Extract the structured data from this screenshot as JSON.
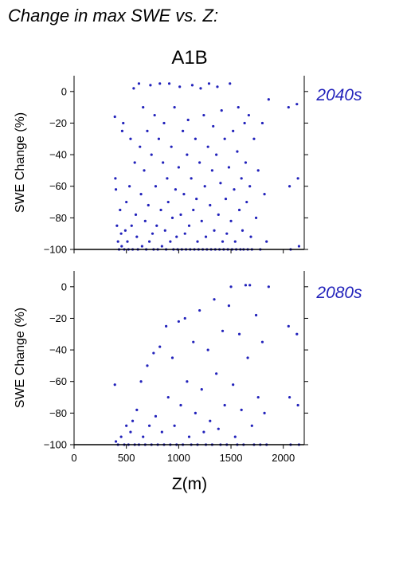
{
  "title": "Change in max SWE vs. Z:",
  "scenario": "A1B",
  "accent_color": "#2222bb",
  "chart_data": [
    {
      "type": "scatter",
      "period_label": "2040s",
      "xlabel": "",
      "ylabel": "SWE Change (%)",
      "xlim": [
        0,
        2200
      ],
      "ylim": [
        -100,
        10
      ],
      "x_ticks": [
        0,
        500,
        1000,
        1500,
        2000
      ],
      "y_ticks": [
        0,
        -20,
        -40,
        -60,
        -80,
        -100
      ],
      "x_tick_labels_visible": false,
      "grid": false,
      "series": [
        {
          "color": "#2222bb",
          "description_of_distribution": "dense vertical columns of points from about 380 m to 2150 m elevation; values span -100 to +6 percent, most dense between -100 and -40",
          "points": [
            [
              390,
              -16
            ],
            [
              395,
              -55
            ],
            [
              400,
              -62
            ],
            [
              410,
              -85
            ],
            [
              420,
              -95
            ],
            [
              430,
              -100
            ],
            [
              440,
              -75
            ],
            [
              450,
              -90
            ],
            [
              455,
              -98
            ],
            [
              460,
              -25
            ],
            [
              470,
              -20
            ],
            [
              480,
              -100
            ],
            [
              490,
              -88
            ],
            [
              500,
              -70
            ],
            [
              510,
              -95
            ],
            [
              520,
              -100
            ],
            [
              530,
              -60
            ],
            [
              540,
              -30
            ],
            [
              550,
              -85
            ],
            [
              560,
              -100
            ],
            [
              570,
              2
            ],
            [
              580,
              -45
            ],
            [
              590,
              -78
            ],
            [
              600,
              -92
            ],
            [
              610,
              -100
            ],
            [
              620,
              5
            ],
            [
              630,
              -35
            ],
            [
              640,
              -65
            ],
            [
              650,
              -98
            ],
            [
              660,
              -10
            ],
            [
              670,
              -50
            ],
            [
              680,
              -82
            ],
            [
              690,
              -100
            ],
            [
              700,
              -25
            ],
            [
              710,
              -72
            ],
            [
              720,
              -95
            ],
            [
              730,
              4
            ],
            [
              740,
              -40
            ],
            [
              750,
              -90
            ],
            [
              760,
              -100
            ],
            [
              770,
              -15
            ],
            [
              780,
              -60
            ],
            [
              790,
              -85
            ],
            [
              800,
              -100
            ],
            [
              810,
              -30
            ],
            [
              820,
              5
            ],
            [
              830,
              -75
            ],
            [
              840,
              -98
            ],
            [
              850,
              -45
            ],
            [
              860,
              -20
            ],
            [
              870,
              -88
            ],
            [
              880,
              -100
            ],
            [
              890,
              -55
            ],
            [
              900,
              -70
            ],
            [
              910,
              5
            ],
            [
              920,
              -95
            ],
            [
              930,
              -35
            ],
            [
              940,
              -80
            ],
            [
              950,
              -100
            ],
            [
              960,
              -10
            ],
            [
              970,
              -62
            ],
            [
              980,
              -92
            ],
            [
              990,
              -100
            ],
            [
              1000,
              -48
            ],
            [
              1010,
              3
            ],
            [
              1020,
              -78
            ],
            [
              1030,
              -100
            ],
            [
              1040,
              -25
            ],
            [
              1050,
              -65
            ],
            [
              1060,
              -90
            ],
            [
              1070,
              -100
            ],
            [
              1080,
              -40
            ],
            [
              1090,
              -18
            ],
            [
              1100,
              -85
            ],
            [
              1110,
              -100
            ],
            [
              1120,
              -55
            ],
            [
              1130,
              4
            ],
            [
              1140,
              -75
            ],
            [
              1150,
              -100
            ],
            [
              1160,
              -30
            ],
            [
              1170,
              -68
            ],
            [
              1180,
              -95
            ],
            [
              1190,
              -100
            ],
            [
              1200,
              -45
            ],
            [
              1210,
              2
            ],
            [
              1220,
              -82
            ],
            [
              1230,
              -100
            ],
            [
              1240,
              -15
            ],
            [
              1250,
              -60
            ],
            [
              1260,
              -92
            ],
            [
              1270,
              -100
            ],
            [
              1280,
              -35
            ],
            [
              1290,
              5
            ],
            [
              1300,
              -72
            ],
            [
              1310,
              -100
            ],
            [
              1320,
              -50
            ],
            [
              1330,
              -22
            ],
            [
              1340,
              -88
            ],
            [
              1350,
              -100
            ],
            [
              1360,
              -40
            ],
            [
              1370,
              3
            ],
            [
              1380,
              -78
            ],
            [
              1390,
              -100
            ],
            [
              1400,
              -58
            ],
            [
              1410,
              -12
            ],
            [
              1420,
              -95
            ],
            [
              1430,
              -100
            ],
            [
              1440,
              -30
            ],
            [
              1450,
              -68
            ],
            [
              1460,
              -90
            ],
            [
              1470,
              -100
            ],
            [
              1480,
              -48
            ],
            [
              1490,
              5
            ],
            [
              1500,
              -82
            ],
            [
              1510,
              -100
            ],
            [
              1520,
              -25
            ],
            [
              1530,
              -62
            ],
            [
              1540,
              -95
            ],
            [
              1550,
              -100
            ],
            [
              1560,
              -38
            ],
            [
              1570,
              -10
            ],
            [
              1580,
              -75
            ],
            [
              1590,
              -100
            ],
            [
              1600,
              -55
            ],
            [
              1610,
              -88
            ],
            [
              1620,
              -100
            ],
            [
              1630,
              -20
            ],
            [
              1640,
              -45
            ],
            [
              1650,
              -70
            ],
            [
              1660,
              -100
            ],
            [
              1670,
              -15
            ],
            [
              1680,
              -60
            ],
            [
              1690,
              -92
            ],
            [
              1700,
              -100
            ],
            [
              1720,
              -30
            ],
            [
              1740,
              -80
            ],
            [
              1760,
              -50
            ],
            [
              1780,
              -100
            ],
            [
              1800,
              -20
            ],
            [
              1820,
              -65
            ],
            [
              1840,
              -95
            ],
            [
              1860,
              -5
            ],
            [
              2050,
              -10
            ],
            [
              2060,
              -60
            ],
            [
              2070,
              -100
            ],
            [
              2130,
              -8
            ],
            [
              2140,
              -55
            ],
            [
              2150,
              -98
            ]
          ]
        }
      ]
    },
    {
      "type": "scatter",
      "period_label": "2080s",
      "xlabel": "Z(m)",
      "ylabel": "SWE Change (%)",
      "xlim": [
        0,
        2200
      ],
      "ylim": [
        -100,
        10
      ],
      "x_ticks": [
        0,
        500,
        1000,
        1500,
        2000
      ],
      "y_ticks": [
        0,
        -20,
        -40,
        -60,
        -80,
        -100
      ],
      "x_tick_labels_visible": true,
      "grid": false,
      "series": [
        {
          "color": "#2222bb",
          "description_of_distribution": "vertical columns of points from about 380 m to 2150 m elevation; values concentrated between -100 and -60, sparse upper envelope rising to about 0 near 1500-1850 m",
          "points": [
            [
              390,
              -62
            ],
            [
              400,
              -98
            ],
            [
              420,
              -100
            ],
            [
              450,
              -95
            ],
            [
              480,
              -100
            ],
            [
              500,
              -88
            ],
            [
              520,
              -100
            ],
            [
              540,
              -92
            ],
            [
              560,
              -85
            ],
            [
              580,
              -100
            ],
            [
              600,
              -78
            ],
            [
              620,
              -100
            ],
            [
              640,
              -60
            ],
            [
              660,
              -95
            ],
            [
              680,
              -100
            ],
            [
              700,
              -50
            ],
            [
              720,
              -88
            ],
            [
              740,
              -100
            ],
            [
              760,
              -42
            ],
            [
              780,
              -82
            ],
            [
              800,
              -100
            ],
            [
              820,
              -38
            ],
            [
              840,
              -92
            ],
            [
              860,
              -100
            ],
            [
              880,
              -25
            ],
            [
              900,
              -70
            ],
            [
              920,
              -100
            ],
            [
              940,
              -45
            ],
            [
              960,
              -88
            ],
            [
              980,
              -100
            ],
            [
              1000,
              -22
            ],
            [
              1020,
              -75
            ],
            [
              1040,
              -100
            ],
            [
              1060,
              -20
            ],
            [
              1080,
              -60
            ],
            [
              1100,
              -95
            ],
            [
              1120,
              -100
            ],
            [
              1140,
              -35
            ],
            [
              1160,
              -80
            ],
            [
              1180,
              -100
            ],
            [
              1200,
              -15
            ],
            [
              1220,
              -65
            ],
            [
              1240,
              -92
            ],
            [
              1260,
              -100
            ],
            [
              1280,
              -40
            ],
            [
              1300,
              -85
            ],
            [
              1320,
              -100
            ],
            [
              1340,
              -8
            ],
            [
              1360,
              -55
            ],
            [
              1380,
              -90
            ],
            [
              1400,
              -100
            ],
            [
              1420,
              -28
            ],
            [
              1440,
              -75
            ],
            [
              1460,
              -100
            ],
            [
              1480,
              -12
            ],
            [
              1500,
              0
            ],
            [
              1520,
              -62
            ],
            [
              1540,
              -95
            ],
            [
              1560,
              -100
            ],
            [
              1580,
              -30
            ],
            [
              1600,
              -78
            ],
            [
              1620,
              -100
            ],
            [
              1640,
              1
            ],
            [
              1660,
              -45
            ],
            [
              1680,
              1
            ],
            [
              1700,
              -88
            ],
            [
              1720,
              -100
            ],
            [
              1740,
              -18
            ],
            [
              1760,
              -70
            ],
            [
              1780,
              -100
            ],
            [
              1800,
              -35
            ],
            [
              1820,
              -80
            ],
            [
              1840,
              -100
            ],
            [
              1860,
              0
            ],
            [
              2050,
              -25
            ],
            [
              2060,
              -70
            ],
            [
              2070,
              -100
            ],
            [
              2130,
              -30
            ],
            [
              2140,
              -75
            ],
            [
              2150,
              -100
            ]
          ]
        }
      ]
    }
  ]
}
